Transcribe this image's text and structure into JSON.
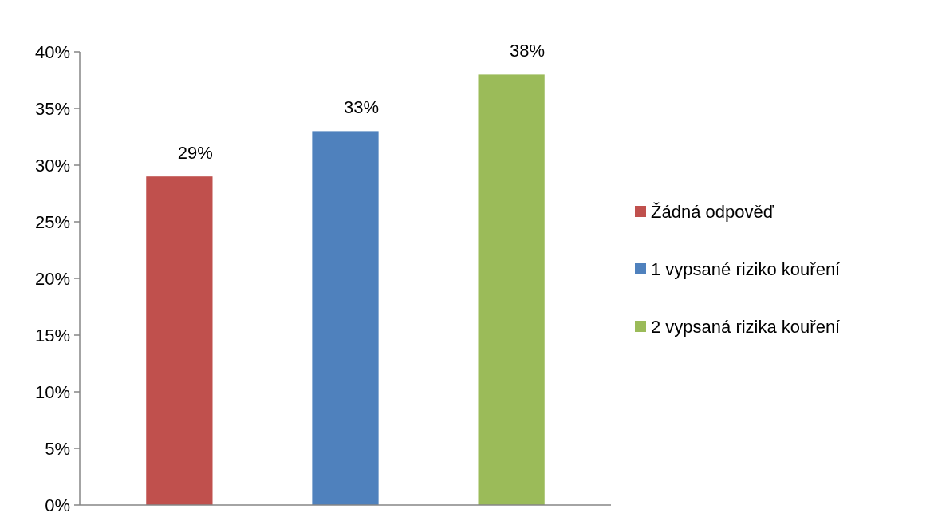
{
  "chart_data": {
    "type": "bar",
    "categories": [
      null,
      null,
      null
    ],
    "series": [
      {
        "name": "Žádná odpověď",
        "color": "#c0504d",
        "values": [
          29,
          null,
          null
        ],
        "value_labels": [
          "29%",
          null,
          null
        ]
      },
      {
        "name": "1 vypsané riziko kouření",
        "color": "#4f81bd",
        "values": [
          null,
          33,
          null
        ],
        "value_labels": [
          null,
          "33%",
          null
        ]
      },
      {
        "name": "2 vypsaná rizika kouření",
        "color": "#9bbb59",
        "values": [
          null,
          null,
          38
        ],
        "value_labels": [
          null,
          null,
          "38%"
        ]
      }
    ],
    "ylim": [
      0,
      40
    ],
    "yticks": [
      {
        "value": 0,
        "label": "0%"
      },
      {
        "value": 5,
        "label": "5%"
      },
      {
        "value": 10,
        "label": "10%"
      },
      {
        "value": 15,
        "label": "15%"
      },
      {
        "value": 20,
        "label": "20%"
      },
      {
        "value": 25,
        "label": "25%"
      },
      {
        "value": 30,
        "label": "30%"
      },
      {
        "value": 35,
        "label": "35%"
      },
      {
        "value": 40,
        "label": "40%"
      }
    ],
    "grid": false,
    "legend": "right"
  }
}
